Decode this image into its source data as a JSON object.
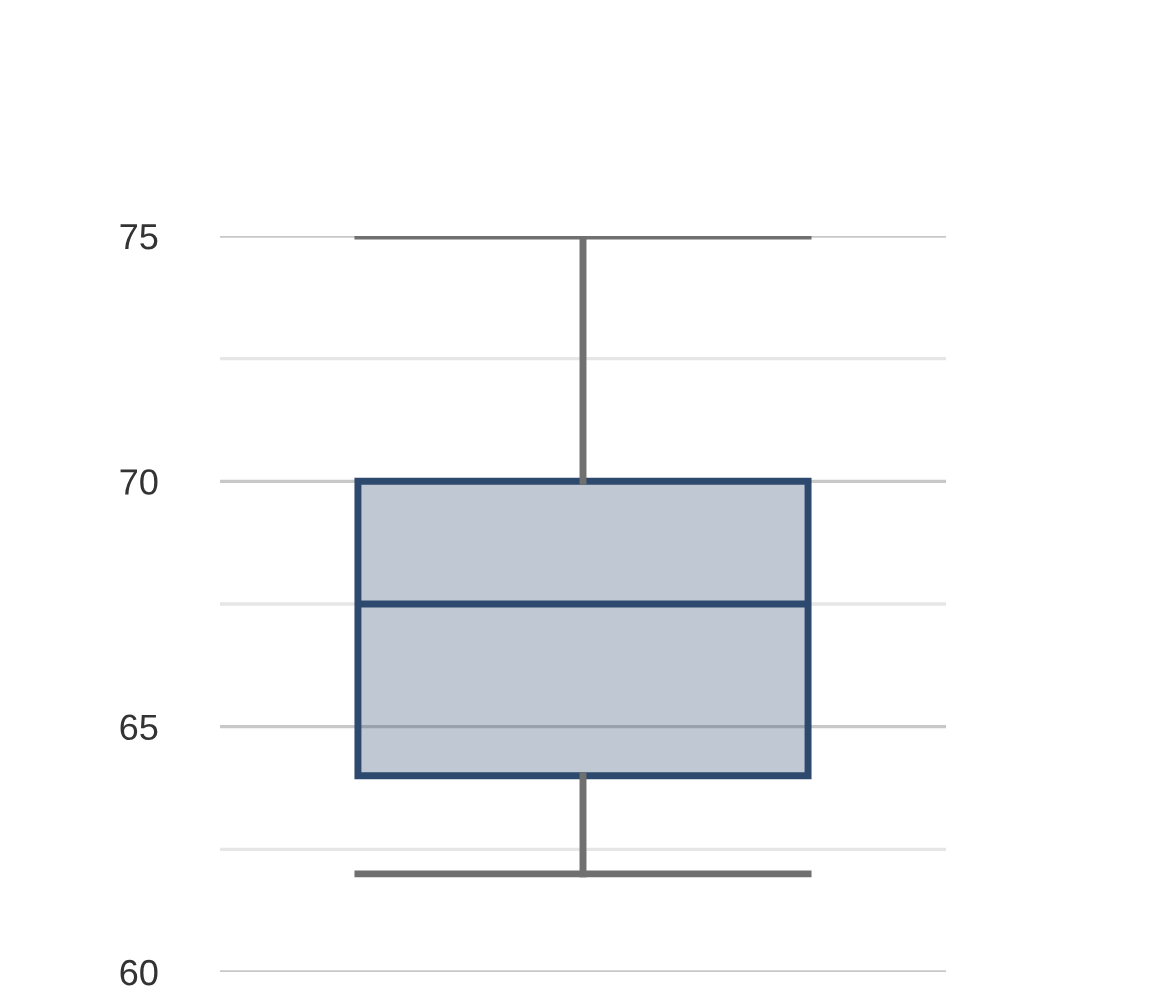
{
  "chart_data": {
    "type": "box",
    "categories": [
      null
    ],
    "boxes": [
      {
        "low": 62,
        "q1": 64,
        "median": 67.5,
        "q3": 70,
        "high": 75
      }
    ],
    "color": "#2d4a6e",
    "ylim": [
      60,
      75
    ],
    "yticks": [
      60,
      {
        "value": 62.5,
        "label": null
      },
      65,
      {
        "value": 67.5,
        "label": null
      },
      70,
      {
        "value": 72.5,
        "label": null
      },
      75
    ],
    "grid": "y"
  }
}
